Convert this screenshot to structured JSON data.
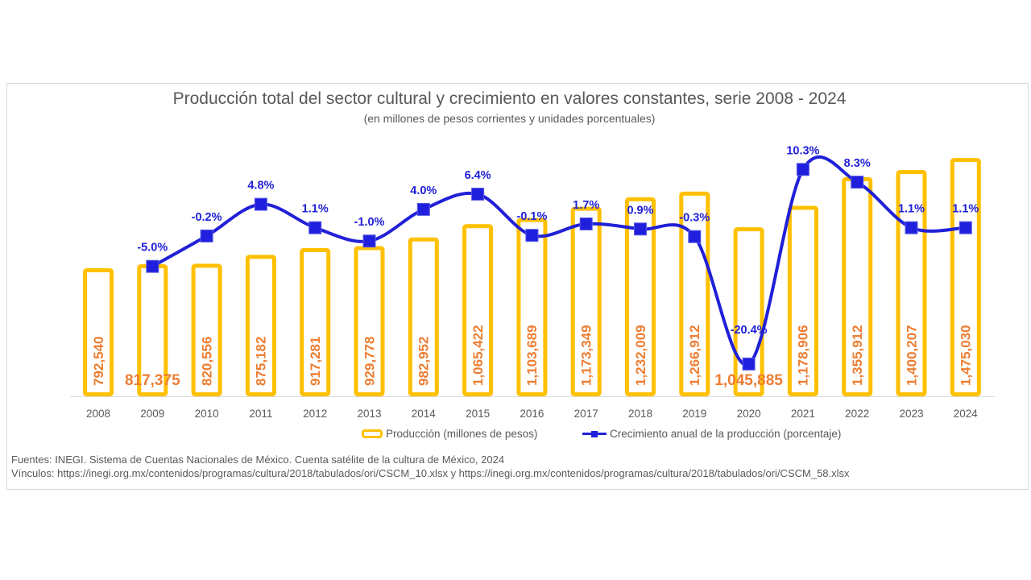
{
  "header": {
    "title": "Producción total del sector cultural y crecimiento en valores constantes, serie 2008 - 2024",
    "subtitle": "(en millones de pesos corrientes y unidades porcentuales)"
  },
  "legend": {
    "bar_label": "Producción (millones de pesos)",
    "line_label": "Crecimiento anual de la producción (porcentaje)"
  },
  "footer": {
    "sources": "Fuentes: INEGI. Sistema de Cuentas Nacionales de México. Cuenta satélite de la cultura de México, 2024",
    "links": "Vínculos: https://inegi.org.mx/contenidos/programas/cultura/2018/tabulados/ori/CSCM_10.xlsx y https://inegi.org.mx/contenidos/programas/cultura/2018/tabulados/ori/CSCM_58.xlsx"
  },
  "colors": {
    "bar_border": "#ffc000",
    "bar_fill": "#ffffff",
    "bar_label": "#ed7d31",
    "line": "#2020d8",
    "marker_fill": "#1f1fdd",
    "marker_stroke": "#5b5be6",
    "pct_label": "#2020d8",
    "axis_text": "#595959",
    "title_text": "#595959",
    "axis_line": "#d9d9d9",
    "frame_border": "#d9d9d9"
  },
  "chart_data": {
    "type": "combo-bar-line",
    "title": "Producción total del sector cultural y crecimiento en valores constantes, serie 2008 - 2024",
    "subtitle": "(en millones de pesos corrientes y unidades porcentuales)",
    "categories": [
      "2008",
      "2009",
      "2010",
      "2011",
      "2012",
      "2013",
      "2014",
      "2015",
      "2016",
      "2017",
      "2018",
      "2019",
      "2020",
      "2021",
      "2022",
      "2023",
      "2024"
    ],
    "series": [
      {
        "name": "Producción (millones de pesos)",
        "type": "bar",
        "axis": "primary",
        "values": [
          792540,
          817375,
          820556,
          875182,
          917281,
          929778,
          982952,
          1065422,
          1103689,
          1173349,
          1232009,
          1266912,
          1045885,
          1178906,
          1355912,
          1400207,
          1475030
        ],
        "labels": [
          "792,540",
          "817,375",
          "820,556",
          "875,182",
          "917,281",
          "929,778",
          "982,952",
          "1,065,422",
          "1,103,689",
          "1,173,349",
          "1,232,009",
          "1,266,912",
          "1,045,885",
          "1,178,906",
          "1,355,912",
          "1,400,207",
          "1,475,030"
        ],
        "horizontal_label_categories": [
          "2009",
          "2020"
        ]
      },
      {
        "name": "Crecimiento anual de la producción (porcentaje)",
        "type": "line",
        "axis": "secondary",
        "smooth": true,
        "values": [
          null,
          -5.0,
          -0.2,
          4.8,
          1.1,
          -1.0,
          4.0,
          6.4,
          -0.1,
          1.7,
          0.9,
          -0.3,
          -20.4,
          10.3,
          8.3,
          1.1,
          1.1
        ],
        "labels": [
          null,
          "-5.0%",
          "-0.2%",
          "4.8%",
          "1.1%",
          "-1.0%",
          "4.0%",
          "6.4%",
          "-0.1%",
          "1.7%",
          "0.9%",
          "-0.3%",
          "-20.4%",
          "10.3%",
          "8.3%",
          "1.1%",
          "1.1%"
        ]
      }
    ],
    "primary_axis": {
      "min": 0,
      "max": 1600000,
      "visible": false
    },
    "secondary_axis": {
      "min": -25.5,
      "max": 15.3,
      "visible": false
    },
    "grid": false,
    "legend_position": "bottom"
  }
}
